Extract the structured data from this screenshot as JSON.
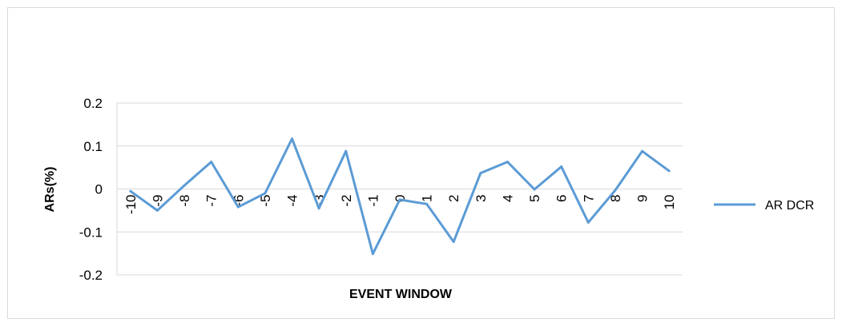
{
  "chart_data": {
    "type": "line",
    "title": "",
    "xlabel": "EVENT WINDOW",
    "ylabel": "ARs(%)",
    "categories": [
      "-10",
      "-9",
      "-8",
      "-7",
      "-6",
      "-5",
      "-4",
      "-3",
      "-2",
      "-1",
      "0",
      "1",
      "2",
      "3",
      "4",
      "5",
      "6",
      "7",
      "8",
      "9",
      "10"
    ],
    "y_ticks": [
      "-0.2",
      "-0.1",
      "0",
      "0.1",
      "0.2"
    ],
    "ylim": [
      -0.2,
      0.2
    ],
    "grid": true,
    "legend_position": "right",
    "series": [
      {
        "name": "AR DCR",
        "color": "#5b9bd5",
        "values": [
          -0.005,
          -0.05,
          0.008,
          0.063,
          -0.042,
          -0.01,
          0.117,
          -0.045,
          0.088,
          -0.151,
          -0.025,
          -0.035,
          -0.123,
          0.037,
          0.063,
          -0.001,
          0.052,
          -0.078,
          -0.003,
          0.088,
          0.042
        ]
      }
    ]
  }
}
